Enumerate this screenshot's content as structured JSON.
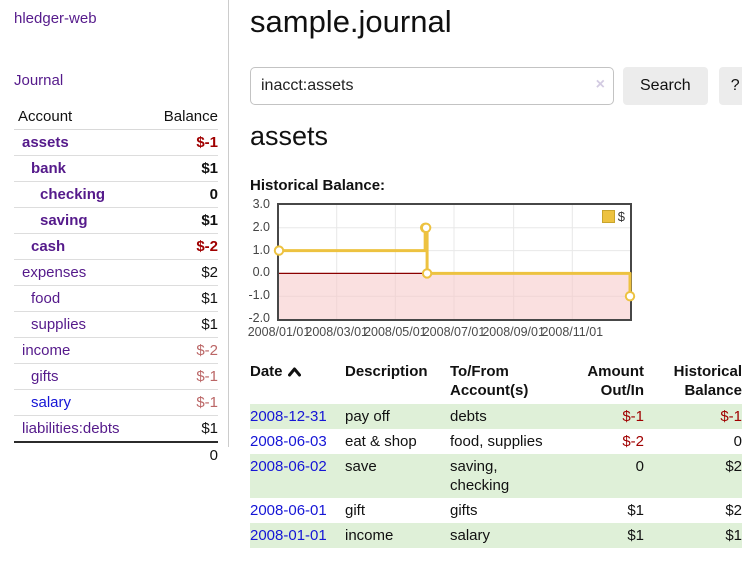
{
  "app": {
    "title": "hledger-web"
  },
  "sidebar": {
    "journal_label": "Journal",
    "header": {
      "account": "Account",
      "balance": "Balance"
    },
    "accounts": [
      {
        "name": "assets",
        "balance": "$-1",
        "level": 1,
        "bold": true,
        "blue": false,
        "neg": "dark"
      },
      {
        "name": "bank",
        "balance": "$1",
        "level": 2,
        "bold": true,
        "blue": false,
        "neg": null
      },
      {
        "name": "checking",
        "balance": "0",
        "level": 3,
        "bold": true,
        "blue": false,
        "neg": null
      },
      {
        "name": "saving",
        "balance": "$1",
        "level": 3,
        "bold": true,
        "blue": false,
        "neg": null
      },
      {
        "name": "cash",
        "balance": "$-2",
        "level": 2,
        "bold": true,
        "blue": false,
        "neg": "dark"
      },
      {
        "name": "expenses",
        "balance": "$2",
        "level": 1,
        "bold": false,
        "blue": false,
        "neg": null
      },
      {
        "name": "food",
        "balance": "$1",
        "level": 2,
        "bold": false,
        "blue": false,
        "neg": null
      },
      {
        "name": "supplies",
        "balance": "$1",
        "level": 2,
        "bold": false,
        "blue": false,
        "neg": null
      },
      {
        "name": "income",
        "balance": "$-2",
        "level": 1,
        "bold": false,
        "blue": false,
        "neg": "muted"
      },
      {
        "name": "gifts",
        "balance": "$-1",
        "level": 2,
        "bold": false,
        "blue": false,
        "neg": "muted"
      },
      {
        "name": "salary",
        "balance": "$-1",
        "level": 2,
        "bold": false,
        "blue": true,
        "neg": "muted"
      },
      {
        "name": "liabilities:debts",
        "balance": "$1",
        "level": 1,
        "bold": false,
        "blue": false,
        "neg": null
      }
    ],
    "total": "0"
  },
  "main": {
    "title": "sample.journal",
    "search": {
      "value": "inacct:assets",
      "clear_icon": "×",
      "button": "Search",
      "help_button": "?"
    },
    "account_heading": "assets",
    "chart_heading": "Historical Balance:"
  },
  "chart_data": {
    "type": "line",
    "title": "Historical Balance of assets",
    "steps": true,
    "x": [
      "2008-01-01",
      "2008-06-01",
      "2008-06-02",
      "2008-06-03",
      "2008-12-31"
    ],
    "x_days": [
      0,
      152,
      153,
      154,
      365
    ],
    "values": [
      1,
      2,
      2,
      0,
      -1
    ],
    "x_range_days": 365,
    "ylim": [
      -2,
      3
    ],
    "yticks": [
      {
        "label": "3.0",
        "value": 3
      },
      {
        "label": "2.0",
        "value": 2
      },
      {
        "label": "1.0",
        "value": 1
      },
      {
        "label": "0.0",
        "value": 0
      },
      {
        "label": "-1.0",
        "value": -1
      },
      {
        "label": "-2.0",
        "value": -2
      }
    ],
    "xticks": [
      {
        "label": "2008/01/01",
        "day": 0
      },
      {
        "label": "2008/03/01",
        "day": 60
      },
      {
        "label": "2008/05/01",
        "day": 121
      },
      {
        "label": "2008/07/01",
        "day": 182
      },
      {
        "label": "2008/09/01",
        "day": 244
      },
      {
        "label": "2008/11/01",
        "day": 305
      }
    ],
    "grid_v_days": [
      60,
      121,
      182,
      244,
      305
    ],
    "grid_h_values": [
      2,
      1,
      -1
    ],
    "legend": {
      "label": "$"
    },
    "series_color": "#edc240",
    "negative_region_color": "#f6c6c6",
    "zero_line_color": "#8b0000",
    "grid_color": "#e8e8e8"
  },
  "transactions": {
    "headers": {
      "date": "Date",
      "description": [
        "Description",
        ""
      ],
      "accounts": [
        "To/From",
        "Account(s)"
      ],
      "amount": [
        "Amount",
        "Out/In"
      ],
      "balance": [
        "Historical",
        "Balance"
      ]
    },
    "rows": [
      {
        "date": "2008-12-31",
        "description": "pay off",
        "accounts": "debts",
        "amount": "$-1",
        "amount_neg": true,
        "balance": "$-1",
        "balance_neg": true
      },
      {
        "date": "2008-06-03",
        "description": "eat & shop",
        "accounts": "food, supplies",
        "amount": "$-2",
        "amount_neg": true,
        "balance": "0",
        "balance_neg": false
      },
      {
        "date": "2008-06-02",
        "description": "save",
        "accounts": "saving, checking",
        "amount": "0",
        "amount_neg": false,
        "balance": "$2",
        "balance_neg": false
      },
      {
        "date": "2008-06-01",
        "description": "gift",
        "accounts": "gifts",
        "amount": "$1",
        "amount_neg": false,
        "balance": "$2",
        "balance_neg": false
      },
      {
        "date": "2008-01-01",
        "description": "income",
        "accounts": "salary",
        "amount": "$1",
        "amount_neg": false,
        "balance": "$1",
        "balance_neg": false
      }
    ]
  },
  "colors": {
    "accent_purple": "#551a8b",
    "link_blue": "#1515d6",
    "negative": "#a00000",
    "negative_muted": "#bb6666",
    "row_green": "#dff0d8",
    "series_yellow": "#edc240"
  }
}
